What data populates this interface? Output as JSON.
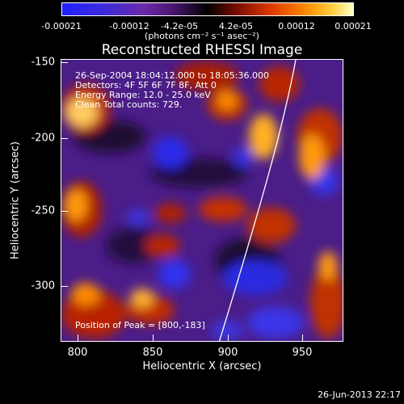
{
  "colorbar": {
    "ticks": [
      "-0.00021",
      "-0.00012",
      "-4.2e-05",
      "4.2e-05",
      "0.00012",
      "0.00021"
    ],
    "units": "(photons cm⁻² s⁻¹ asec⁻²)"
  },
  "title": "Reconstructed RHESSI Image",
  "info": {
    "line1": "26-Sep-2004 18:04:12.000 to 18:05:36.000",
    "line2": "Detectors: 4F 5F 6F 7F 8F, Att 0",
    "line3": "Energy Range: 12.0 - 25.0 keV",
    "line4": "Clean    Total counts: 729.",
    "peak": "Position of Peak = [800,-183]"
  },
  "axes": {
    "xlabel": "Heliocentric X (arcsec)",
    "ylabel": "Heliocentric Y (arcsec)",
    "xticks": [
      "800",
      "850",
      "900",
      "950"
    ],
    "yticks": [
      "-150",
      "-200",
      "-250",
      "-300"
    ]
  },
  "footer": "26-Jun-2013 22:17",
  "chart_data": {
    "type": "heatmap",
    "title": "Reconstructed RHESSI Image",
    "xlabel": "Heliocentric X (arcsec)",
    "ylabel": "Heliocentric Y (arcsec)",
    "xlim": [
      790,
      980
    ],
    "ylim": [
      -340,
      -147
    ],
    "xticks": [
      800,
      850,
      900,
      950
    ],
    "yticks": [
      -150,
      -200,
      -250,
      -300
    ],
    "colorbar_range": [
      -0.00021,
      0.00021
    ],
    "peak": [
      800,
      -183
    ]
  }
}
